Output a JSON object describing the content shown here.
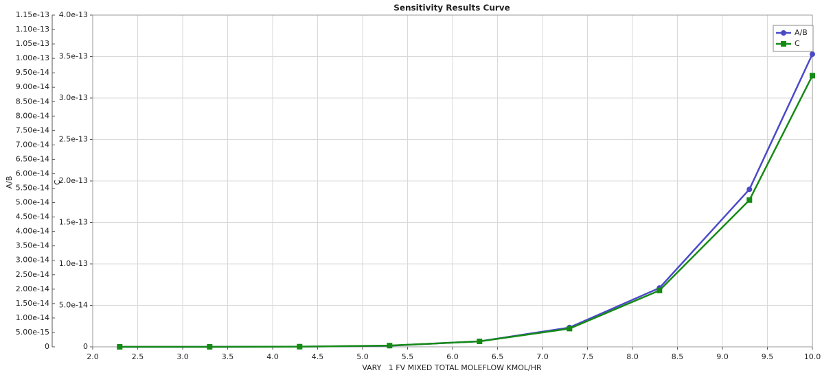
{
  "chart_data": {
    "type": "line",
    "title": "Sensitivity Results Curve",
    "xlabel": "VARY   1 FV MIXED TOTAL MOLEFLOW KMOL/HR",
    "ylabel": "A/B",
    "y2label": "C",
    "x": [
      2.3,
      3.3,
      4.3,
      5.3,
      6.3,
      7.3,
      8.3,
      9.3,
      10.0
    ],
    "series": [
      {
        "name": "A/B",
        "color": "#4a4ac8",
        "marker": "circle",
        "axis": "y",
        "values": [
          0,
          5e-18,
          5e-17,
          4e-16,
          1.9e-15,
          6.7e-15,
          2.04e-14,
          5.46e-14,
          1.0145e-13
        ]
      },
      {
        "name": "C",
        "color": "#158a15",
        "marker": "square",
        "axis": "y2",
        "values": [
          0,
          2e-17,
          2e-16,
          1.5e-15,
          6.6e-15,
          2.2e-14,
          6.8e-14,
          1.77e-13,
          3.27e-13
        ]
      }
    ],
    "xlim": [
      2.0,
      10.0
    ],
    "xticks": [
      {
        "value": 2,
        "label": "2.0"
      },
      2.5,
      {
        "value": 3,
        "label": "3.0"
      },
      3.5,
      {
        "value": 4,
        "label": "4.0"
      },
      4.5,
      {
        "value": 5,
        "label": "5.0"
      },
      5.5,
      {
        "value": 6,
        "label": "6.0"
      },
      6.5,
      {
        "value": 7,
        "label": "7.0"
      },
      7.5,
      {
        "value": 8,
        "label": "8.0"
      },
      8.5,
      {
        "value": 9,
        "label": "9.0"
      },
      9.5,
      {
        "value": 10,
        "label": "10.0"
      }
    ],
    "ylim": [
      0,
      1.15e-13
    ],
    "yticks": [
      0,
      {
        "value": 5e-15,
        "label": "5.00e-15"
      },
      {
        "value": 1e-14,
        "label": "1.00e-14"
      },
      {
        "value": 1.5e-14,
        "label": "1.50e-14"
      },
      {
        "value": 2e-14,
        "label": "2.00e-14"
      },
      {
        "value": 2.5e-14,
        "label": "2.50e-14"
      },
      {
        "value": 3e-14,
        "label": "3.00e-14"
      },
      {
        "value": 3.5e-14,
        "label": "3.50e-14"
      },
      {
        "value": 4e-14,
        "label": "4.00e-14"
      },
      {
        "value": 4.5e-14,
        "label": "4.50e-14"
      },
      {
        "value": 5e-14,
        "label": "5.00e-14"
      },
      {
        "value": 5.5e-14,
        "label": "5.50e-14"
      },
      {
        "value": 6e-14,
        "label": "6.00e-14"
      },
      {
        "value": 6.5e-14,
        "label": "6.50e-14"
      },
      {
        "value": 7e-14,
        "label": "7.00e-14"
      },
      {
        "value": 7.5e-14,
        "label": "7.50e-14"
      },
      {
        "value": 8e-14,
        "label": "8.00e-14"
      },
      {
        "value": 8.5e-14,
        "label": "8.50e-14"
      },
      {
        "value": 9e-14,
        "label": "9.00e-14"
      },
      {
        "value": 9.5e-14,
        "label": "9.50e-14"
      },
      {
        "value": 1e-13,
        "label": "1.00e-13"
      },
      1.05e-13,
      {
        "value": 1.1e-13,
        "label": "1.10e-13"
      },
      1.15e-13
    ],
    "y2lim": [
      0,
      4e-13
    ],
    "y2ticks": [
      0,
      {
        "value": 5e-14,
        "label": "5.0e-14"
      },
      {
        "value": 1e-13,
        "label": "1.0e-13"
      },
      1.5e-13,
      {
        "value": 2e-13,
        "label": "2.0e-13"
      },
      2.5e-13,
      {
        "value": 3e-13,
        "label": "3.0e-13"
      },
      3.5e-13,
      {
        "value": 4e-13,
        "label": "4.0e-13"
      }
    ],
    "grid": true,
    "legend": "top-right"
  }
}
